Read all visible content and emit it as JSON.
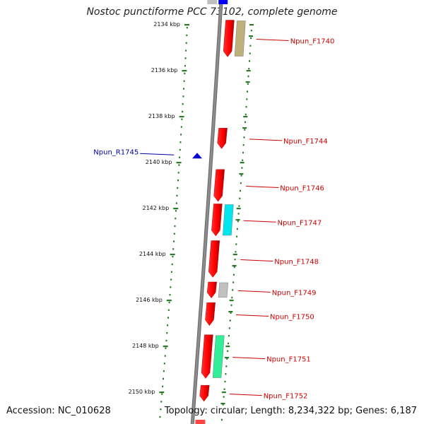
{
  "title": "Nostoc punctiforme PCC 73102, complete genome",
  "accession": "Accession: NC_010628",
  "topology": "Topology: circular; Length: 8,234,322 bp; Genes: 6,187",
  "colors": {
    "backbone": "#8c8c8c",
    "tick": "#2a7a2a",
    "forward_gene": "#ff0000",
    "reverse_gene": "#0000cc",
    "forward_label": "#cc0000",
    "reverse_label": "#0000aa"
  },
  "scale": {
    "unit": "kbp",
    "ticks": [
      {
        "kbp": 2134,
        "label": "2134 kbp"
      },
      {
        "kbp": 2136,
        "label": "2136 kbp"
      },
      {
        "kbp": 2138,
        "label": "2138 kbp"
      },
      {
        "kbp": 2140,
        "label": "2140 kbp"
      },
      {
        "kbp": 2142,
        "label": "2142 kbp"
      },
      {
        "kbp": 2144,
        "label": "2144 kbp"
      },
      {
        "kbp": 2146,
        "label": "2146 kbp"
      },
      {
        "kbp": 2148,
        "label": "2148 kbp"
      },
      {
        "kbp": 2150,
        "label": "2150 kbp"
      }
    ]
  },
  "genes": [
    {
      "label": "Npun_F1740",
      "strand": "forward",
      "start": 2133.8,
      "end": 2135.4,
      "feature_color": "#bdb07a"
    },
    {
      "label": "Npun_F1744",
      "strand": "forward",
      "start": 2138.5,
      "end": 2139.4
    },
    {
      "label": "Npun_R1745",
      "strand": "reverse",
      "start": 2139.6,
      "end": 2139.8
    },
    {
      "label": "Npun_F1746",
      "strand": "forward",
      "start": 2140.3,
      "end": 2141.7
    },
    {
      "label": "Npun_F1747",
      "strand": "forward",
      "start": 2141.8,
      "end": 2143.2,
      "feature_color": "#00e5ee"
    },
    {
      "label": "Npun_F1748",
      "strand": "forward",
      "start": 2143.4,
      "end": 2145.0
    },
    {
      "label": "Npun_F1749",
      "strand": "forward",
      "start": 2145.2,
      "end": 2145.9,
      "feature_color": "#c0c0c0"
    },
    {
      "label": "Npun_F1750",
      "strand": "forward",
      "start": 2146.1,
      "end": 2147.1
    },
    {
      "label": "Npun_F1751",
      "strand": "forward",
      "start": 2147.5,
      "end": 2149.4,
      "feature_color": "#33ee99"
    },
    {
      "label": "Npun_F1752",
      "strand": "forward",
      "start": 2149.7,
      "end": 2150.4
    }
  ]
}
